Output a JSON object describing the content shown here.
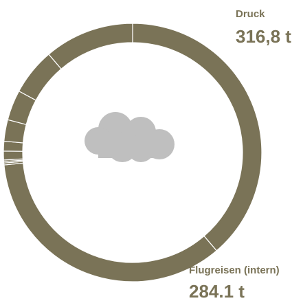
{
  "chart_data": {
    "type": "donut",
    "categories": [
      "Druck",
      "Flugreisen (intern)",
      null,
      null,
      null,
      null,
      null,
      null,
      null,
      null,
      null
    ],
    "values": [
      316.8,
      284.1,
      2,
      1.5,
      1.5,
      9,
      10,
      22,
      31,
      48,
      92
    ],
    "value_labels": [
      "316,8 t",
      "284.1 t",
      null,
      null,
      null,
      null,
      null,
      null,
      null,
      null,
      null
    ],
    "color": "#7a7357"
  }
}
